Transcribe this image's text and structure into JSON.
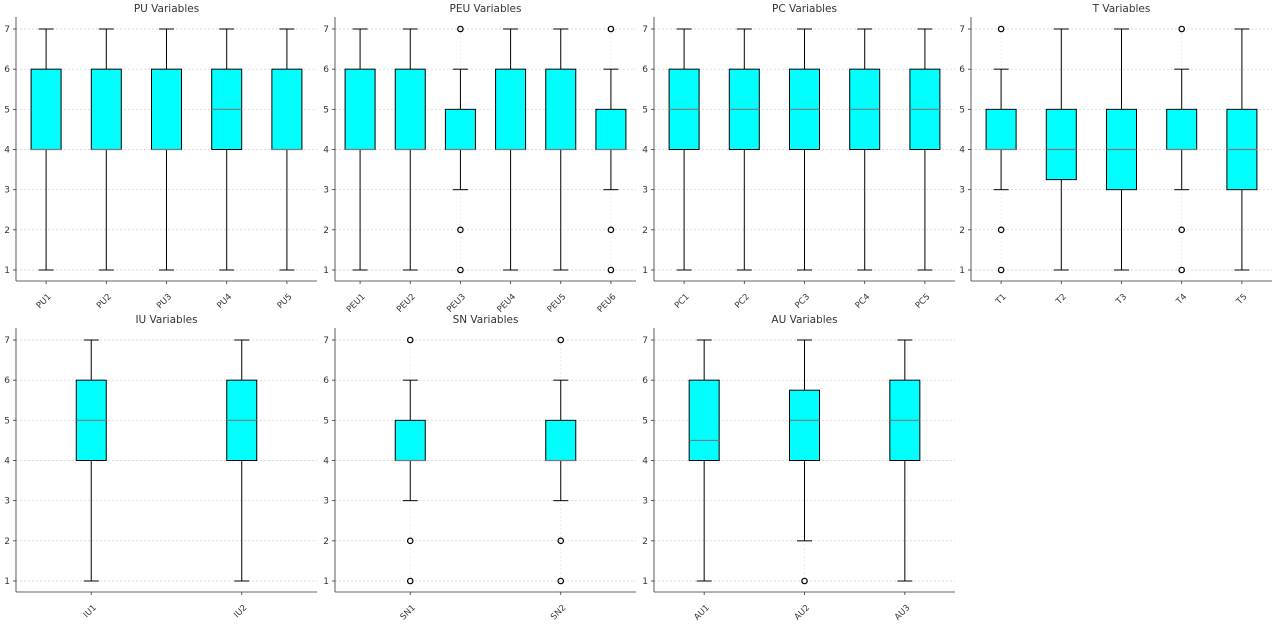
{
  "chart_data": [
    {
      "type": "box",
      "title": "PU Variables",
      "ylim": [
        1,
        7
      ],
      "yticks": [
        1,
        2,
        3,
        4,
        5,
        6,
        7
      ],
      "grid": true,
      "box_color": "#00ffff",
      "categories": [
        "PU1",
        "PU2",
        "PU3",
        "PU4",
        "PU5"
      ],
      "boxes": [
        {
          "min": 1,
          "q1": 4,
          "median": 4,
          "q3": 6,
          "max": 7,
          "outliers": []
        },
        {
          "min": 1,
          "q1": 4,
          "median": 4,
          "q3": 6,
          "max": 7,
          "outliers": []
        },
        {
          "min": 1,
          "q1": 4,
          "median": 4,
          "q3": 6,
          "max": 7,
          "outliers": []
        },
        {
          "min": 1,
          "q1": 4,
          "median": 5,
          "q3": 6,
          "max": 7,
          "outliers": []
        },
        {
          "min": 1,
          "q1": 4,
          "median": 4,
          "q3": 6,
          "max": 7,
          "outliers": []
        }
      ]
    },
    {
      "type": "box",
      "title": "PEU Variables",
      "ylim": [
        1,
        7
      ],
      "yticks": [
        1,
        2,
        3,
        4,
        5,
        6,
        7
      ],
      "grid": true,
      "box_color": "#00ffff",
      "categories": [
        "PEU1",
        "PEU2",
        "PEU3",
        "PEU4",
        "PEU5",
        "PEU6"
      ],
      "boxes": [
        {
          "min": 1,
          "q1": 4,
          "median": 4,
          "q3": 6,
          "max": 7,
          "outliers": []
        },
        {
          "min": 1,
          "q1": 4,
          "median": 4,
          "q3": 6,
          "max": 7,
          "outliers": []
        },
        {
          "min": 3,
          "q1": 4,
          "median": 4,
          "q3": 5,
          "max": 6,
          "outliers": [
            1,
            2,
            7
          ]
        },
        {
          "min": 1,
          "q1": 4,
          "median": 4,
          "q3": 6,
          "max": 7,
          "outliers": []
        },
        {
          "min": 1,
          "q1": 4,
          "median": 4,
          "q3": 6,
          "max": 7,
          "outliers": []
        },
        {
          "min": 3,
          "q1": 4,
          "median": 4,
          "q3": 5,
          "max": 6,
          "outliers": [
            1,
            2,
            7
          ]
        }
      ]
    },
    {
      "type": "box",
      "title": "PC Variables",
      "ylim": [
        1,
        7
      ],
      "yticks": [
        1,
        2,
        3,
        4,
        5,
        6,
        7
      ],
      "grid": true,
      "box_color": "#00ffff",
      "categories": [
        "PC1",
        "PC2",
        "PC3",
        "PC4",
        "PC5"
      ],
      "boxes": [
        {
          "min": 1,
          "q1": 4,
          "median": 5,
          "q3": 6,
          "max": 7,
          "outliers": []
        },
        {
          "min": 1,
          "q1": 4,
          "median": 5,
          "q3": 6,
          "max": 7,
          "outliers": []
        },
        {
          "min": 1,
          "q1": 4,
          "median": 5,
          "q3": 6,
          "max": 7,
          "outliers": []
        },
        {
          "min": 1,
          "q1": 4,
          "median": 5,
          "q3": 6,
          "max": 7,
          "outliers": []
        },
        {
          "min": 1,
          "q1": 4,
          "median": 5,
          "q3": 6,
          "max": 7,
          "outliers": []
        }
      ]
    },
    {
      "type": "box",
      "title": "T Variables",
      "ylim": [
        1,
        7
      ],
      "yticks": [
        1,
        2,
        3,
        4,
        5,
        6,
        7
      ],
      "grid": true,
      "box_color": "#00ffff",
      "categories": [
        "T1",
        "T2",
        "T3",
        "T4",
        "T5"
      ],
      "boxes": [
        {
          "min": 3,
          "q1": 4,
          "median": 4,
          "q3": 5,
          "max": 6,
          "outliers": [
            1,
            2,
            7
          ]
        },
        {
          "min": 1,
          "q1": 3.25,
          "median": 4,
          "q3": 5,
          "max": 7,
          "outliers": []
        },
        {
          "min": 1,
          "q1": 3,
          "median": 4,
          "q3": 5,
          "max": 7,
          "outliers": []
        },
        {
          "min": 3,
          "q1": 4,
          "median": 4,
          "q3": 5,
          "max": 6,
          "outliers": [
            1,
            2,
            7
          ]
        },
        {
          "min": 1,
          "q1": 3,
          "median": 4,
          "q3": 5,
          "max": 7,
          "outliers": []
        }
      ]
    },
    {
      "type": "box",
      "title": "IU Variables",
      "ylim": [
        1,
        7
      ],
      "yticks": [
        1,
        2,
        3,
        4,
        5,
        6,
        7
      ],
      "grid": true,
      "box_color": "#00ffff",
      "categories": [
        "IU1",
        "IU2"
      ],
      "boxes": [
        {
          "min": 1,
          "q1": 4,
          "median": 5,
          "q3": 6,
          "max": 7,
          "outliers": []
        },
        {
          "min": 1,
          "q1": 4,
          "median": 5,
          "q3": 6,
          "max": 7,
          "outliers": []
        }
      ]
    },
    {
      "type": "box",
      "title": "SN Variables",
      "ylim": [
        1,
        7
      ],
      "yticks": [
        1,
        2,
        3,
        4,
        5,
        6,
        7
      ],
      "grid": true,
      "box_color": "#00ffff",
      "categories": [
        "SN1",
        "SN2"
      ],
      "boxes": [
        {
          "min": 3,
          "q1": 4,
          "median": 4,
          "q3": 5,
          "max": 6,
          "outliers": [
            1,
            2,
            7
          ]
        },
        {
          "min": 3,
          "q1": 4,
          "median": 4,
          "q3": 5,
          "max": 6,
          "outliers": [
            1,
            2,
            7
          ]
        }
      ]
    },
    {
      "type": "box",
      "title": "AU Variables",
      "ylim": [
        1,
        7
      ],
      "yticks": [
        1,
        2,
        3,
        4,
        5,
        6,
        7
      ],
      "grid": true,
      "box_color": "#00ffff",
      "categories": [
        "AU1",
        "AU2",
        "AU3"
      ],
      "boxes": [
        {
          "min": 1,
          "q1": 4,
          "median": 4.5,
          "q3": 6,
          "max": 7,
          "outliers": []
        },
        {
          "min": 2,
          "q1": 4,
          "median": 5,
          "q3": 5.75,
          "max": 7,
          "outliers": [
            1
          ]
        },
        {
          "min": 1,
          "q1": 4,
          "median": 5,
          "q3": 6,
          "max": 7,
          "outliers": []
        }
      ]
    }
  ]
}
